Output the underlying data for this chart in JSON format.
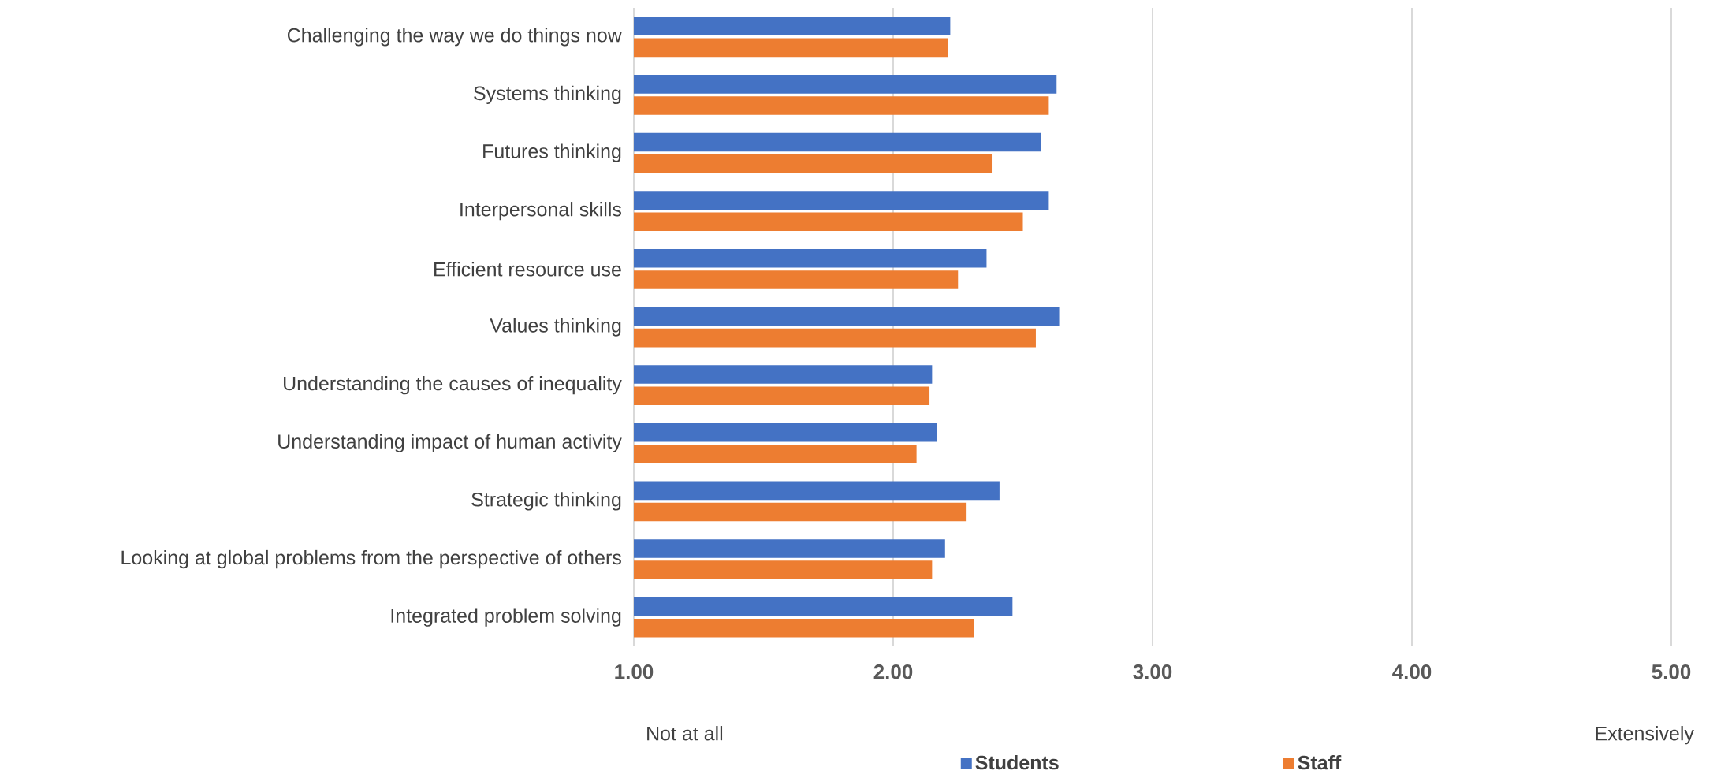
{
  "chart_data": {
    "type": "bar",
    "orientation": "horizontal",
    "categories": [
      "Challenging the way we do things now",
      "Systems thinking",
      "Futures thinking",
      "Interpersonal skills",
      "Efficient resource use",
      "Values thinking",
      "Understanding the causes of inequality",
      "Understanding impact of human activity",
      "Strategic thinking",
      "Looking at global problems from the perspective of others",
      "Integrated problem solving"
    ],
    "series": [
      {
        "name": "Students",
        "color": "#4472c4",
        "values": [
          2.22,
          2.63,
          2.57,
          2.6,
          2.36,
          2.64,
          2.15,
          2.17,
          2.41,
          2.2,
          2.46
        ]
      },
      {
        "name": "Staff",
        "color": "#ed7d31",
        "values": [
          2.21,
          2.6,
          2.38,
          2.5,
          2.25,
          2.55,
          2.14,
          2.09,
          2.28,
          2.15,
          2.31
        ]
      }
    ],
    "xlim": [
      1,
      5
    ],
    "xticks": [
      {
        "value": 1,
        "label": "1.00"
      },
      {
        "value": 2,
        "label": "2.00"
      },
      {
        "value": 3,
        "label": "3.00"
      },
      {
        "value": 4,
        "label": "4.00"
      },
      {
        "value": 5,
        "label": "5.00"
      }
    ],
    "grid": "x",
    "legend": "bottom",
    "annotations": [
      "Not at all",
      "Extensively"
    ]
  }
}
